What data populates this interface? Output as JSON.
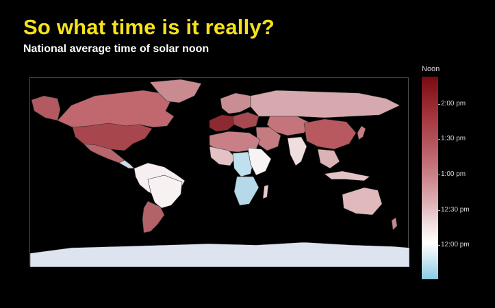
{
  "title": "So what time is it really?",
  "subtitle": "National average time of solar noon",
  "legend": {
    "title": "Noon",
    "ticks": [
      "2:00 pm",
      "1:30 pm",
      "1:00 pm",
      "12:30 pm",
      "12:00 pm"
    ]
  },
  "colors": {
    "background": "#000000",
    "title": "#f7e21a",
    "scale_latest": "#7a0a12",
    "scale_mid": "#ffffff",
    "scale_earliest": "#89cbe6"
  },
  "chart_data": {
    "type": "choropleth",
    "title": "So what time is it really?",
    "subtitle": "National average time of solar noon",
    "colorbar_title": "Noon",
    "colorbar_ticks": [
      "2:00 pm",
      "1:30 pm",
      "1:00 pm",
      "12:30 pm",
      "12:00 pm"
    ],
    "color_scale": [
      "#89cbe6",
      "#ffffff",
      "#7a0a12"
    ]
  }
}
